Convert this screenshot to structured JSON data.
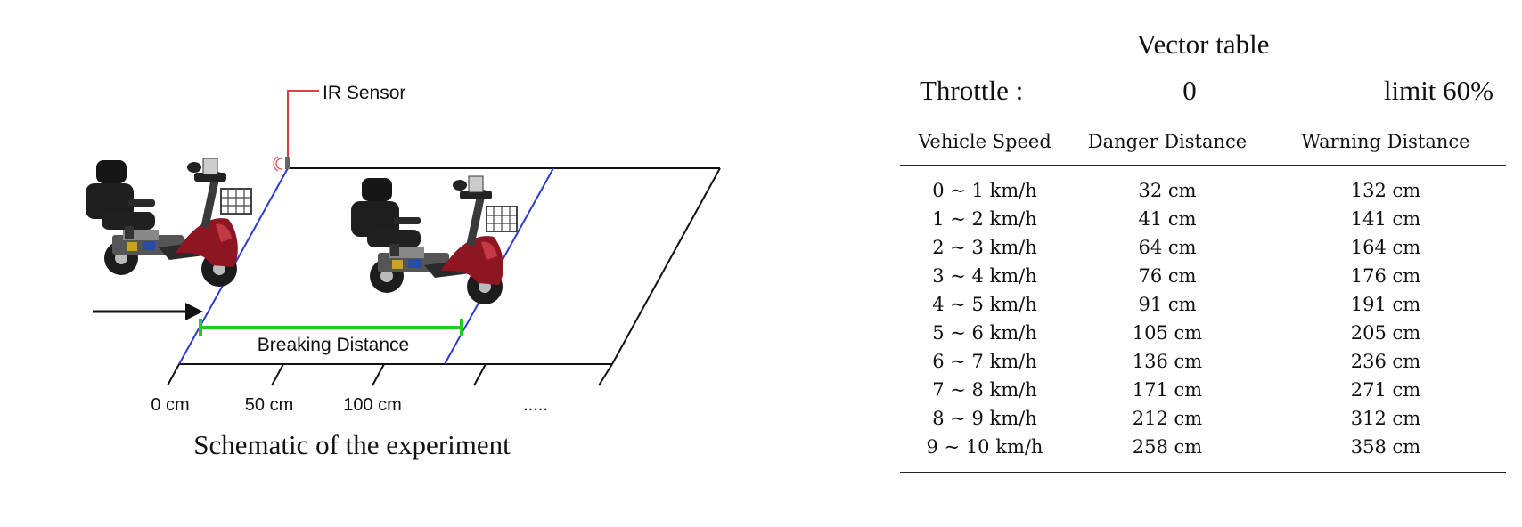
{
  "diagram": {
    "sensor_label": "IR Sensor",
    "distance_label": "Breaking Distance",
    "ticks": [
      "0 cm",
      "50 cm",
      "100 cm",
      "....."
    ],
    "caption": "Schematic of the experiment",
    "colors": {
      "lane_edge": "#2b3bd1",
      "distance_bar": "#22cc22",
      "sensor_line": "#d12b2b",
      "scooter_body": "#8e1622"
    }
  },
  "table": {
    "title": "Vector table",
    "throttle_label": "Throttle :",
    "throttle_value": "0",
    "limit": "limit 60%",
    "headers": [
      "Vehicle Speed",
      "Danger Distance",
      "Warning Distance"
    ],
    "rows": [
      [
        "0 ~ 1 km/h",
        "32 cm",
        "132 cm"
      ],
      [
        "1 ~ 2 km/h",
        "41 cm",
        "141 cm"
      ],
      [
        "2 ~ 3 km/h",
        "64 cm",
        "164 cm"
      ],
      [
        "3 ~ 4 km/h",
        "76 cm",
        "176 cm"
      ],
      [
        "4 ~ 5 km/h",
        "91 cm",
        "191 cm"
      ],
      [
        "5 ~ 6 km/h",
        "105 cm",
        "205 cm"
      ],
      [
        "6 ~ 7 km/h",
        "136 cm",
        "236 cm"
      ],
      [
        "7 ~ 8 km/h",
        "171 cm",
        "271 cm"
      ],
      [
        "8 ~ 9 km/h",
        "212 cm",
        "312 cm"
      ],
      [
        "9 ~ 10 km/h",
        "258 cm",
        "358 cm"
      ]
    ]
  }
}
